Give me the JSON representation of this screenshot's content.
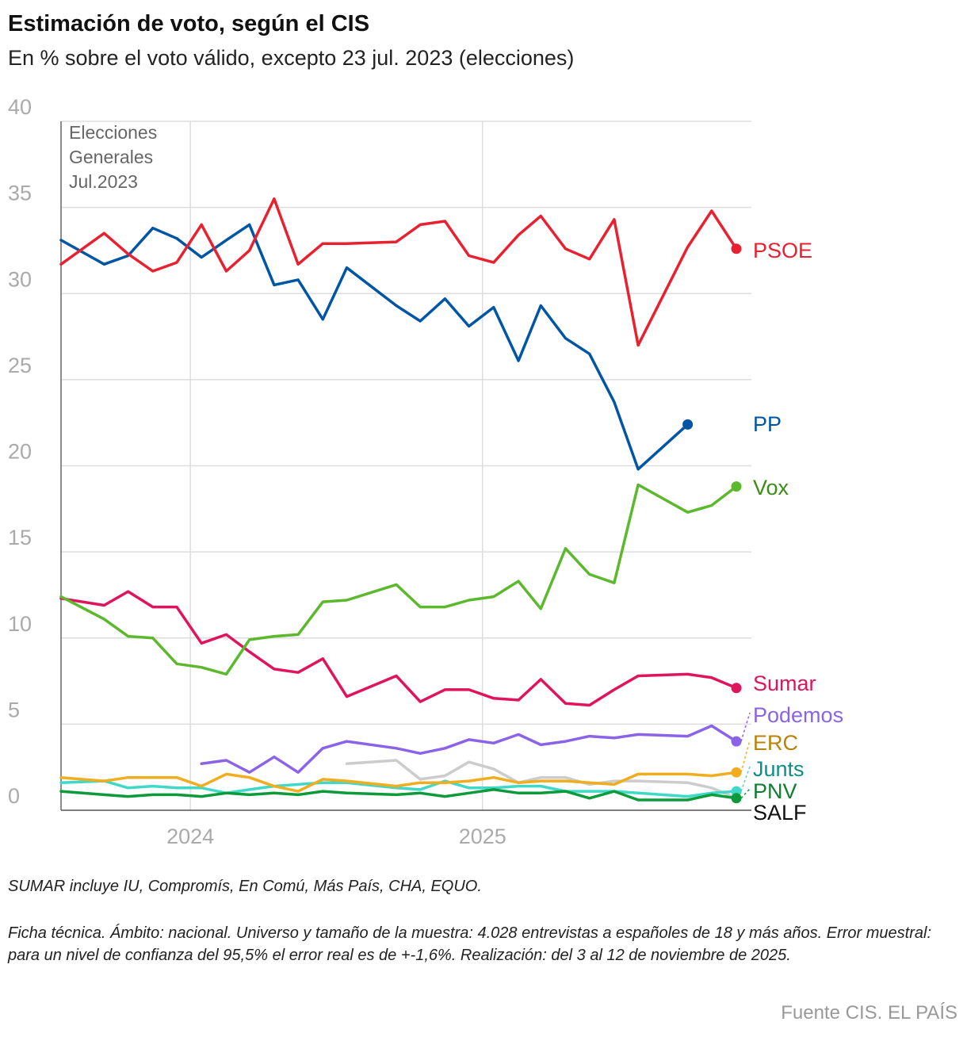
{
  "title": "Estimación de voto, según el CIS",
  "subtitle": "En % sobre el voto válido, excepto 23 jul. 2023 (elecciones)",
  "notes": {
    "sumar": "SUMAR incluye IU, Compromís, En Comú, Más País, CHA, EQUO.",
    "ficha": "Ficha técnica. Ámbito: nacional. Universo y tamaño de la muestra: 4.028 entrevistas a españoles de 18 y más años. Error muestral: para un nivel de confianza del 95,5% el error real es de +-1,6%. Realización: del 3 al 12 de noviembre de 2025."
  },
  "source": "Fuente CIS. EL PAÍS",
  "chart_data": {
    "type": "line",
    "ylim": [
      0,
      40
    ],
    "y_ticks": [
      "40",
      "35",
      "30",
      "25",
      "20",
      "15",
      "10",
      "5",
      "0"
    ],
    "xlim": [
      "2023-07-23",
      "2025-11-15"
    ],
    "x_ticks": [
      {
        "label": "2024",
        "date": "2024-01-01"
      },
      {
        "label": "2025",
        "date": "2025-01-01"
      }
    ],
    "annotation": {
      "lines": [
        "Elecciones",
        "Generales",
        "Jul.2023"
      ],
      "date": "2023-07-23"
    },
    "x": [
      "2023-07-23",
      "2023-09-15",
      "2023-10-15",
      "2023-11-15",
      "2023-12-15",
      "2024-01-15",
      "2024-02-15",
      "2024-03-15",
      "2024-04-15",
      "2024-05-15",
      "2024-06-15",
      "2024-07-15",
      "2024-09-15",
      "2024-10-15",
      "2024-11-15",
      "2024-12-15",
      "2025-01-15",
      "2025-02-15",
      "2025-03-15",
      "2025-04-15",
      "2025-05-15",
      "2025-06-15",
      "2025-07-15",
      "2025-09-15",
      "2025-10-15",
      "2025-11-15"
    ],
    "series": [
      {
        "name": "PSOE",
        "color": "#e8202f",
        "values": [
          31.7,
          33.5,
          32.3,
          31.3,
          31.8,
          34.0,
          31.3,
          32.5,
          35.5,
          31.7,
          32.9,
          32.9,
          33.0,
          34.0,
          34.2,
          32.2,
          31.8,
          33.4,
          34.5,
          32.6,
          32.0,
          34.3,
          27.0,
          32.7,
          34.8,
          32.6
        ]
      },
      {
        "name": "PP",
        "color": "#0055a5",
        "values": [
          33.1,
          31.7,
          32.2,
          33.8,
          33.2,
          32.1,
          33.1,
          34.0,
          30.5,
          30.8,
          28.5,
          31.5,
          29.3,
          28.4,
          29.7,
          28.1,
          29.2,
          26.1,
          29.3,
          27.4,
          26.5,
          23.7,
          19.8,
          22.4,
          null,
          null
        ]
      },
      {
        "name": "Vox",
        "color": "#5cb82c",
        "label_color": "#3c8d15",
        "values": [
          12.4,
          11.1,
          10.1,
          10.0,
          8.5,
          8.3,
          7.9,
          9.9,
          10.1,
          10.2,
          12.1,
          12.2,
          13.1,
          11.8,
          11.8,
          12.2,
          12.4,
          13.3,
          11.7,
          15.2,
          13.7,
          13.2,
          18.9,
          17.3,
          17.7,
          18.8
        ]
      },
      {
        "name": "Sumar",
        "color": "#e0135d",
        "values": [
          12.3,
          11.9,
          12.7,
          11.8,
          11.8,
          9.7,
          10.2,
          9.2,
          8.2,
          8.0,
          8.8,
          6.6,
          7.8,
          6.3,
          7.0,
          7.0,
          6.5,
          6.4,
          7.6,
          6.2,
          6.1,
          7.0,
          7.8,
          7.9,
          7.7,
          7.1
        ]
      },
      {
        "name": "Podemos",
        "color": "#8a63e8",
        "values": [
          null,
          null,
          null,
          null,
          null,
          2.7,
          2.9,
          2.2,
          3.1,
          2.2,
          3.6,
          4.0,
          3.6,
          3.3,
          3.6,
          4.1,
          3.9,
          4.4,
          3.8,
          4.0,
          4.3,
          4.2,
          4.4,
          4.3,
          4.9,
          4.0
        ]
      },
      {
        "name": "ERC",
        "color": "#f0ad1e",
        "label_color": "#b7830a",
        "values": [
          1.9,
          1.7,
          1.9,
          1.9,
          1.9,
          1.4,
          2.1,
          1.9,
          1.4,
          1.1,
          1.8,
          1.7,
          1.4,
          1.6,
          1.6,
          1.7,
          1.9,
          1.6,
          1.7,
          1.7,
          1.6,
          1.5,
          2.1,
          2.1,
          2.0,
          2.2
        ]
      },
      {
        "name": "Junts",
        "color": "#3fd9c7",
        "label_color": "#0d8f85",
        "values": [
          1.6,
          1.7,
          1.3,
          1.4,
          1.3,
          1.3,
          1.0,
          1.2,
          1.4,
          1.5,
          1.6,
          1.6,
          1.3,
          1.2,
          1.7,
          1.3,
          1.3,
          1.4,
          1.4,
          1.1,
          1.1,
          1.1,
          1.0,
          0.8,
          1.0,
          1.1
        ]
      },
      {
        "name": "PNV",
        "color": "#0d9a3b",
        "label_color": "#0d7f2f",
        "values": [
          1.1,
          0.9,
          0.8,
          0.9,
          0.9,
          0.8,
          1.0,
          0.9,
          1.0,
          0.9,
          1.1,
          1.0,
          0.9,
          1.0,
          0.8,
          1.0,
          1.2,
          1.0,
          1.0,
          1.1,
          0.7,
          1.1,
          0.6,
          0.6,
          0.9,
          0.7
        ]
      },
      {
        "name": "SALF",
        "color": "#cccccc",
        "label_color": "#111111",
        "values": [
          null,
          null,
          null,
          null,
          null,
          null,
          null,
          null,
          null,
          null,
          null,
          2.7,
          2.9,
          1.8,
          2.0,
          2.8,
          2.4,
          1.6,
          1.9,
          1.9,
          1.5,
          1.7,
          1.7,
          1.6,
          1.3,
          0.7
        ]
      }
    ],
    "grid": true,
    "legend": "end-labels"
  }
}
